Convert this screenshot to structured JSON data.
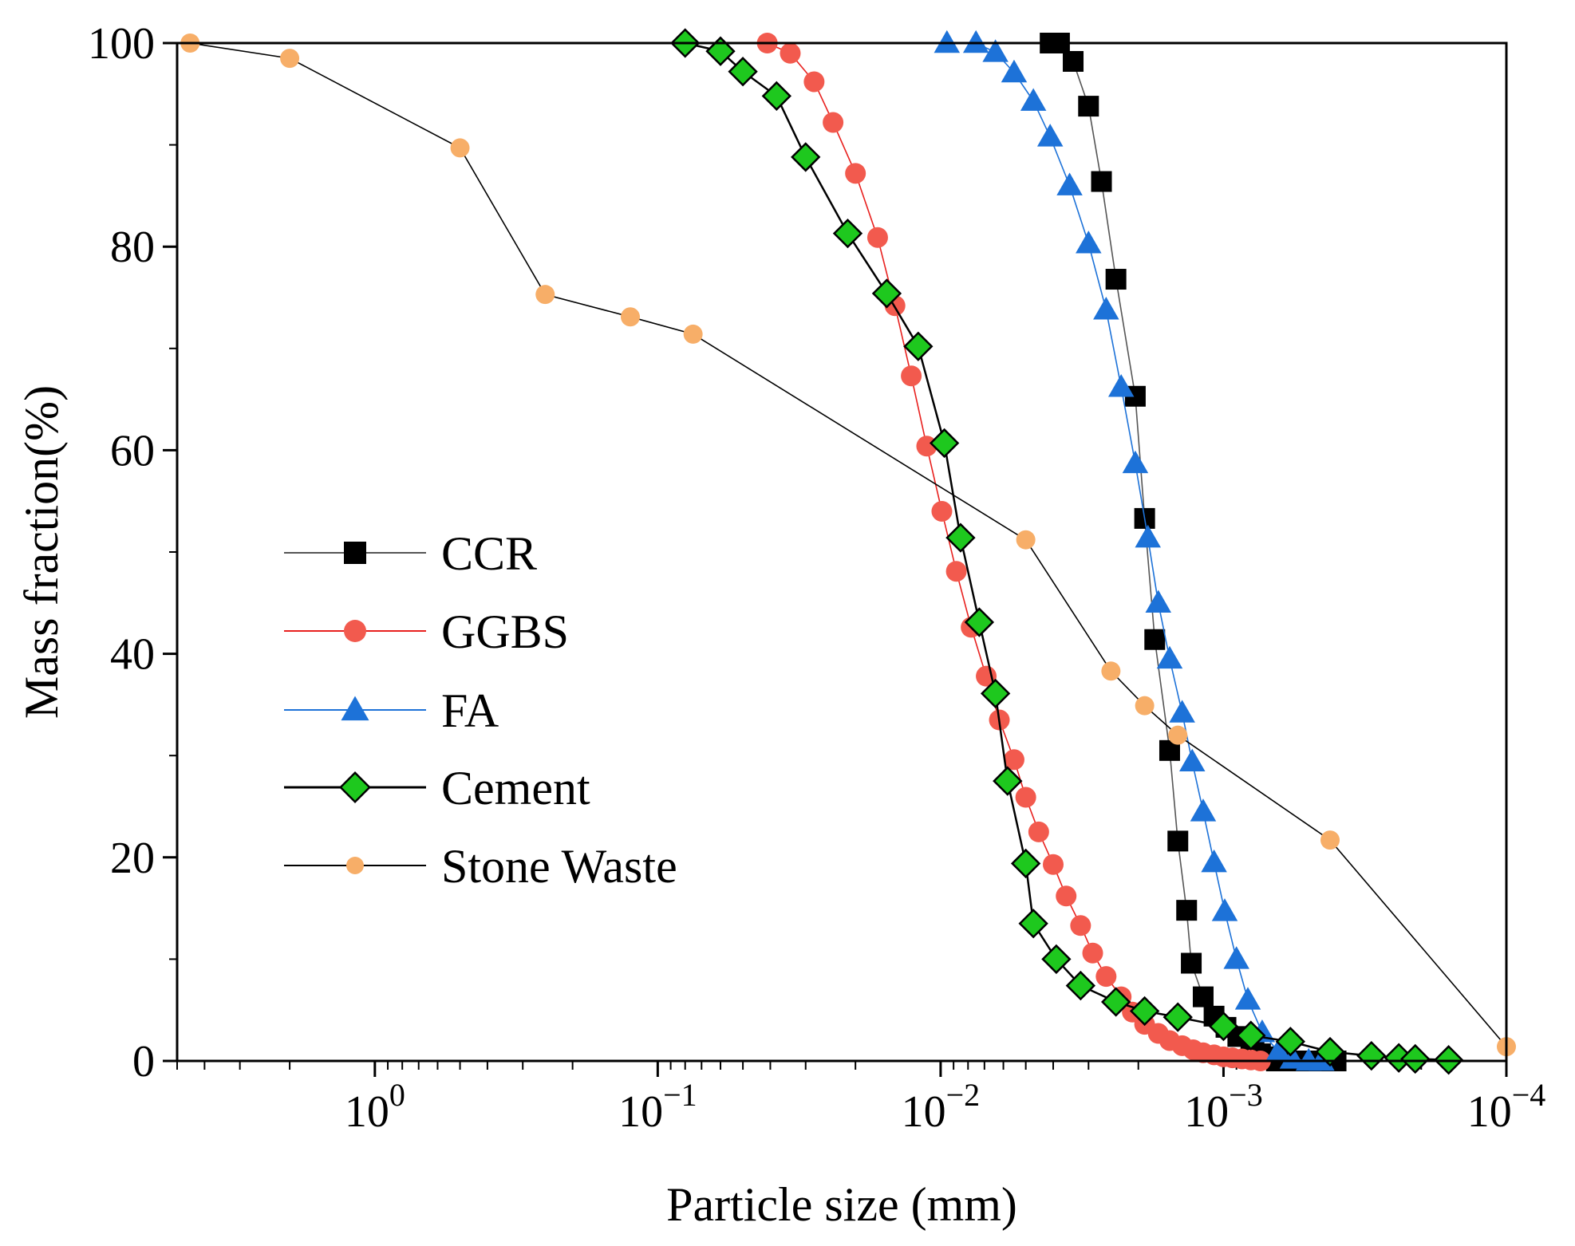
{
  "chart_data": {
    "type": "line",
    "x_scale": "log",
    "x_reversed": true,
    "xlim": [
      5,
      0.0001
    ],
    "ylim": [
      0,
      100
    ],
    "xlabel": "Particle size (mm)",
    "ylabel": "Mass fraction(%)",
    "x_ticks": [
      {
        "value": 1,
        "base": "10",
        "exp": "0"
      },
      {
        "value": 0.1,
        "base": "10",
        "exp": "−1"
      },
      {
        "value": 0.01,
        "base": "10",
        "exp": "−2"
      },
      {
        "value": 0.001,
        "base": "10",
        "exp": "−3"
      },
      {
        "value": 0.0001,
        "base": "10",
        "exp": "−4"
      }
    ],
    "y_ticks": [
      "0",
      "20",
      "40",
      "60",
      "80",
      "100"
    ],
    "legend": {
      "position": "center-left"
    },
    "series": [
      {
        "name": "CCR",
        "marker": "square",
        "color": "#000000",
        "marker_color": "#000000",
        "line_color": "#555555",
        "x": [
          0.0041,
          0.0038,
          0.0034,
          0.003,
          0.0027,
          0.0024,
          0.00205,
          0.0019,
          0.00175,
          0.00155,
          0.00145,
          0.00135,
          0.0013,
          0.00118,
          0.00108,
          0.00098,
          0.00089,
          0.0008,
          0.00078,
          0.00074,
          0.00071,
          0.00068,
          0.00065,
          0.0006,
          0.00055,
          0.0005,
          0.00045,
          0.0004
        ],
        "y": [
          100,
          100,
          98.2,
          93.8,
          86.4,
          76.8,
          65.3,
          53.3,
          41.4,
          30.5,
          21.6,
          14.8,
          9.6,
          6.3,
          4.4,
          3.3,
          2.4,
          1.6,
          1.1,
          0.7,
          0.4,
          0.2,
          0,
          0,
          0,
          0,
          0,
          0
        ]
      },
      {
        "name": "GGBS",
        "marker": "circle",
        "color": "#e8201e",
        "marker_color": "#f25a4e",
        "line_color": "#e8201e",
        "x": [
          0.041,
          0.034,
          0.028,
          0.024,
          0.02,
          0.0167,
          0.0145,
          0.0127,
          0.0112,
          0.0099,
          0.0088,
          0.0078,
          0.0069,
          0.0062,
          0.0055,
          0.005,
          0.0045,
          0.004,
          0.0036,
          0.0032,
          0.0029,
          0.0026,
          0.0023,
          0.0021,
          0.0019,
          0.0017,
          0.00155,
          0.0014,
          0.00128,
          0.00118,
          0.00108,
          0.001,
          0.00093,
          0.00086,
          0.0008,
          0.00074
        ],
        "y": [
          100,
          99,
          96.2,
          92.2,
          87.2,
          80.9,
          74.2,
          67.3,
          60.4,
          54,
          48.1,
          42.6,
          37.8,
          33.5,
          29.6,
          25.9,
          22.5,
          19.3,
          16.2,
          13.3,
          10.6,
          8.3,
          6.3,
          4.8,
          3.6,
          2.7,
          2,
          1.5,
          1.1,
          0.8,
          0.6,
          0.4,
          0.3,
          0.2,
          0.1,
          0
        ]
      },
      {
        "name": "FA",
        "marker": "triangle",
        "color": "#1d72d8",
        "marker_color": "#1d72d8",
        "line_color": "#1d72d8",
        "x": [
          0.0095,
          0.0075,
          0.0064,
          0.0055,
          0.0047,
          0.0041,
          0.0035,
          0.003,
          0.0026,
          0.0023,
          0.00205,
          0.00185,
          0.0017,
          0.00155,
          0.0014,
          0.00129,
          0.00118,
          0.00108,
          0.00099,
          0.0009,
          0.00082,
          0.00073,
          0.00064,
          0.00057,
          0.0005,
          0.00045
        ],
        "y": [
          100,
          100,
          99.1,
          97.1,
          94.3,
          90.8,
          86,
          80.3,
          73.8,
          66.2,
          58.7,
          51.4,
          45,
          39.5,
          34.2,
          29.4,
          24.5,
          19.5,
          14.7,
          10,
          6,
          2.8,
          0.9,
          0.2,
          0,
          0
        ]
      },
      {
        "name": "Cement",
        "marker": "diamond",
        "color": "#000000",
        "marker_color": "#1ec81e",
        "line_color": "#000000",
        "x": [
          0.08,
          0.06,
          0.05,
          0.038,
          0.03,
          0.0213,
          0.0155,
          0.012,
          0.0097,
          0.0085,
          0.0073,
          0.0064,
          0.0058,
          0.005,
          0.0047,
          0.0039,
          0.0032,
          0.0024,
          0.0019,
          0.00145,
          0.001,
          0.0008,
          0.00058,
          0.00042,
          0.0003,
          0.00024,
          0.00021,
          0.00016
        ],
        "y": [
          100,
          99.2,
          97.2,
          94.8,
          88.8,
          81.3,
          75.4,
          70.2,
          60.7,
          51.4,
          43.1,
          36.1,
          27.5,
          19.4,
          13.5,
          10,
          7.4,
          5.8,
          4.9,
          4.3,
          3.4,
          2.5,
          1.9,
          0.9,
          0.5,
          0.3,
          0.2,
          0.1
        ]
      },
      {
        "name": "Stone Waste",
        "marker": "circle",
        "color": "#000000",
        "marker_color": "#f7ae68",
        "line_color": "#000000",
        "x": [
          4.5,
          2,
          0.5,
          0.25,
          0.125,
          0.075,
          0.005,
          0.0025,
          0.0019,
          0.00145,
          0.00042,
          0.0001
        ],
        "y": [
          100,
          98.5,
          89.7,
          75.3,
          73.1,
          71.4,
          51.2,
          38.3,
          34.9,
          32,
          21.7,
          1.4
        ]
      }
    ]
  }
}
